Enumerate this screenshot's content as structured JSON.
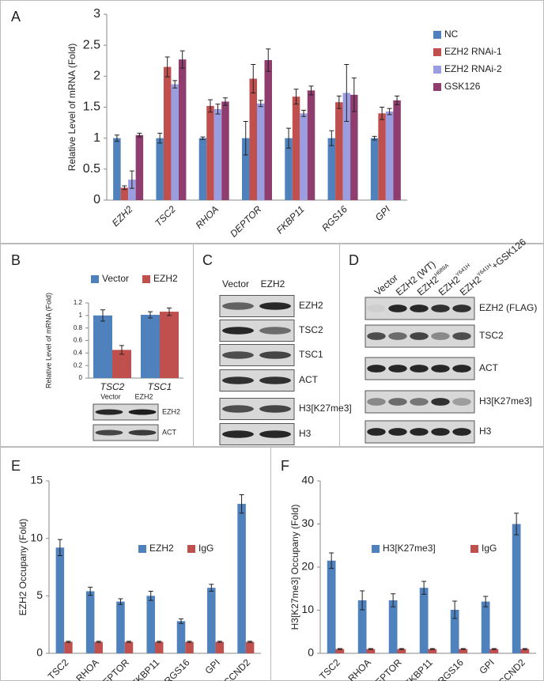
{
  "chart_data": [
    {
      "panel": "A",
      "type": "bar",
      "ylabel": "Relative Level of mRNA (Fold)",
      "categories": [
        "EZH2",
        "TSC2",
        "RHOA",
        "DEPTOR",
        "FKBP11",
        "RGS16",
        "GPI"
      ],
      "series": [
        {
          "name": "NC",
          "color": "#4f81bd",
          "values": [
            1,
            1,
            1,
            1,
            1,
            1,
            1
          ],
          "errors": [
            0.05,
            0.08,
            0.02,
            0.27,
            0.16,
            0.12,
            0.03
          ]
        },
        {
          "name": "EZH2 RNAi-1",
          "color": "#c0504d",
          "values": [
            0.2,
            2.15,
            1.52,
            1.96,
            1.67,
            1.58,
            1.4
          ],
          "errors": [
            0.03,
            0.16,
            0.1,
            0.23,
            0.12,
            0.1,
            0.1
          ]
        },
        {
          "name": "EZH2 RNAi-2",
          "color": "#9a9ee0",
          "values": [
            0.33,
            1.87,
            1.47,
            1.56,
            1.4,
            1.73,
            1.43
          ],
          "errors": [
            0.14,
            0.06,
            0.08,
            0.05,
            0.05,
            0.46,
            0.05
          ]
        },
        {
          "name": "GSK126",
          "color": "#8e3d6e",
          "values": [
            1.05,
            2.27,
            1.59,
            2.26,
            1.77,
            1.7,
            1.61
          ],
          "errors": [
            0.03,
            0.14,
            0.06,
            0.18,
            0.07,
            0.27,
            0.07
          ]
        }
      ],
      "ylim": [
        0,
        3
      ],
      "yticks": [
        0,
        0.5,
        1,
        1.5,
        2,
        2.5,
        3
      ],
      "legend": "right"
    },
    {
      "panel": "B",
      "type": "bar",
      "ylabel": "Relative Level of mRNA (Fold)",
      "categories": [
        "TSC2",
        "TSC1"
      ],
      "series": [
        {
          "name": "Vector",
          "color": "#4f81bd",
          "values": [
            1,
            1.01
          ],
          "errors": [
            0.09,
            0.05
          ]
        },
        {
          "name": "EZH2",
          "color": "#c0504d",
          "values": [
            0.45,
            1.06
          ],
          "errors": [
            0.07,
            0.06
          ]
        }
      ],
      "ylim": [
        0,
        1.2
      ],
      "yticks": [
        0,
        0.2,
        0.4,
        0.6,
        0.8,
        1,
        1.2
      ],
      "legend": "top"
    },
    {
      "panel": "E",
      "type": "bar",
      "ylabel": "EZH2 Occupany (Fold)",
      "categories": [
        "TSC2",
        "RHOA",
        "DEPTOR",
        "FKBP11",
        "RGS16",
        "GPI",
        "CCND2"
      ],
      "series": [
        {
          "name": "EZH2",
          "color": "#4f81bd",
          "values": [
            9.2,
            5.4,
            4.5,
            5.0,
            2.8,
            5.7,
            13.0
          ],
          "errors": [
            0.7,
            0.35,
            0.25,
            0.4,
            0.2,
            0.3,
            0.8
          ]
        },
        {
          "name": "IgG",
          "color": "#c0504d",
          "values": [
            1,
            1,
            1,
            1,
            1,
            1,
            1
          ],
          "errors": [
            0.05,
            0.05,
            0.05,
            0.05,
            0.05,
            0.05,
            0.05
          ]
        }
      ],
      "ylim": [
        0,
        15
      ],
      "yticks": [
        0,
        5,
        10,
        15
      ],
      "legend": "center right"
    },
    {
      "panel": "F",
      "type": "bar",
      "ylabel": "H3[K27me3] Occupany (Fold)",
      "categories": [
        "TSC2",
        "RHOA",
        "DEPTOR",
        "FKBP11",
        "RGS16",
        "GPI",
        "CCND2"
      ],
      "series": [
        {
          "name": "H3[K27me3]",
          "color": "#4f81bd",
          "values": [
            21.5,
            12.3,
            12.3,
            15.2,
            10.1,
            12.0,
            30.0
          ],
          "errors": [
            1.8,
            2.2,
            1.5,
            1.5,
            2.0,
            1.2,
            2.5
          ]
        },
        {
          "name": "IgG",
          "color": "#c0504d",
          "values": [
            1,
            1,
            1,
            1,
            1,
            1,
            1
          ],
          "errors": [
            0.1,
            0.1,
            0.1,
            0.1,
            0.1,
            0.1,
            0.1
          ]
        }
      ],
      "ylim": [
        0,
        40
      ],
      "yticks": [
        0,
        10,
        20,
        30,
        40
      ],
      "legend": "center right"
    }
  ],
  "blots": {
    "B": {
      "columns": [
        "Vector",
        "EZH2"
      ],
      "rows": [
        "EZH2",
        "ACT"
      ]
    },
    "C": {
      "panel": "C",
      "columns": [
        "Vector",
        "EZH2"
      ],
      "rows": [
        "EZH2",
        "TSC2",
        "TSC1",
        "ACT",
        "H3[K27me3]",
        "H3"
      ]
    },
    "D": {
      "panel": "D",
      "columns": [
        {
          "base": "Vector"
        },
        {
          "base": "EZH2 (WT)"
        },
        {
          "base": "EZH2",
          "sup": "H689A"
        },
        {
          "base": "EZH2",
          "sup": "Y641H"
        },
        {
          "base": "EZH2",
          "sup": "Y641H",
          "rest": "+GSK126"
        }
      ],
      "rows": [
        "EZH2 (FLAG)",
        "TSC2",
        "ACT",
        "H3[K27me3]",
        "H3"
      ]
    }
  }
}
